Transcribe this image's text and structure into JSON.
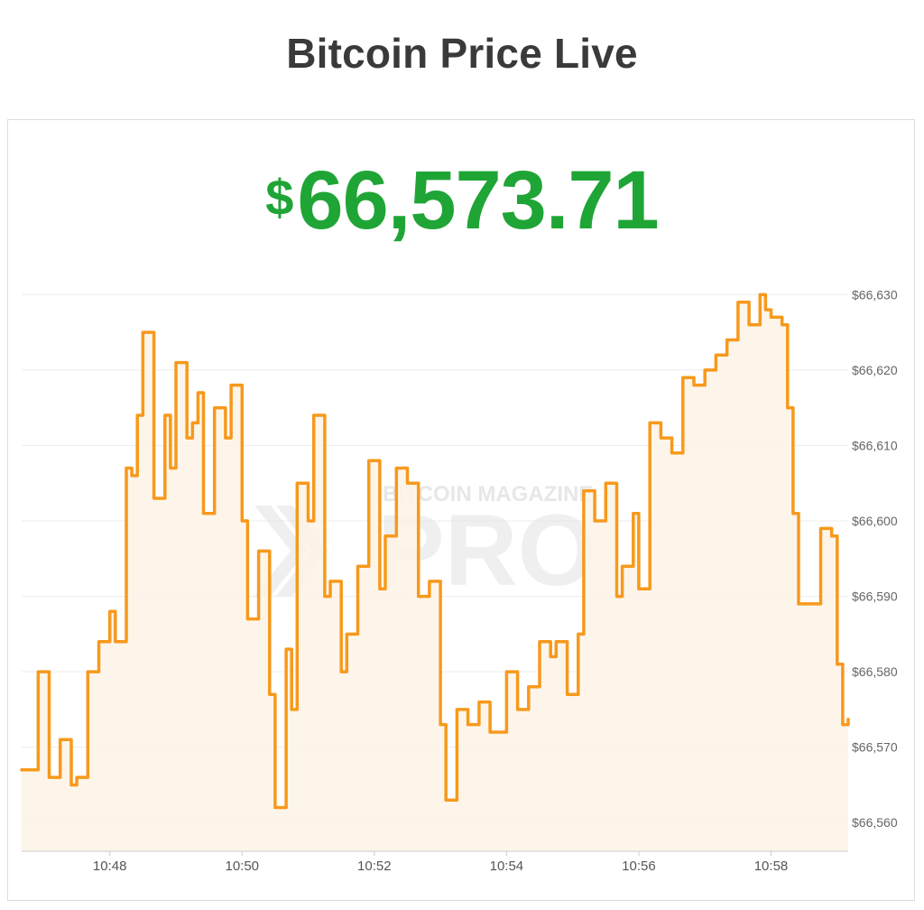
{
  "header": {
    "title": "Bitcoin Price Live"
  },
  "price": {
    "currency": "$",
    "value": "66,573.71"
  },
  "watermark": {
    "top": "BITCOIN MAGAZINE",
    "bottom": "PRO"
  },
  "colors": {
    "line": "#f7991c",
    "area": "#fdf3e6",
    "price": "#1fa535",
    "grid": "#ececec"
  },
  "chart_data": {
    "type": "area",
    "title": "",
    "xlabel": "",
    "ylabel": "",
    "x_ticks": [
      "10:48",
      "10:50",
      "10:52",
      "10:54",
      "10:56",
      "10:58"
    ],
    "y_ticks": [
      "$66,560",
      "$66,570",
      "$66,580",
      "$66,590",
      "$66,600",
      "$66,610",
      "$66,620",
      "$66,630"
    ],
    "ylim": [
      66556.2,
      66631
    ],
    "xlim": [
      "10:46:40",
      "10:59:10"
    ],
    "grid": true,
    "y_axis_position": "right",
    "series": [
      {
        "x": [
          "10:46:40",
          "10:46:55",
          "10:47:05",
          "10:47:15",
          "10:47:25",
          "10:47:30",
          "10:47:40",
          "10:47:50",
          "10:48:00",
          "10:48:05",
          "10:48:15",
          "10:48:20",
          "10:48:25",
          "10:48:30",
          "10:48:40",
          "10:48:50",
          "10:48:55",
          "10:49:00",
          "10:49:10",
          "10:49:15",
          "10:49:20",
          "10:49:25",
          "10:49:35",
          "10:49:45",
          "10:49:50",
          "10:50:00",
          "10:50:05",
          "10:50:15",
          "10:50:25",
          "10:50:30",
          "10:50:40",
          "10:50:45",
          "10:50:50",
          "10:51:00",
          "10:51:05",
          "10:51:15",
          "10:51:20",
          "10:51:30",
          "10:51:35",
          "10:51:45",
          "10:51:55",
          "10:52:05",
          "10:52:10",
          "10:52:20",
          "10:52:30",
          "10:52:40",
          "10:52:50",
          "10:53:00",
          "10:53:05",
          "10:53:15",
          "10:53:25",
          "10:53:35",
          "10:53:45",
          "10:54:00",
          "10:54:10",
          "10:54:20",
          "10:54:30",
          "10:54:40",
          "10:54:45",
          "10:54:55",
          "10:55:05",
          "10:55:10",
          "10:55:20",
          "10:55:30",
          "10:55:40",
          "10:55:45",
          "10:55:55",
          "10:56:00",
          "10:56:10",
          "10:56:20",
          "10:56:30",
          "10:56:40",
          "10:56:50",
          "10:57:00",
          "10:57:10",
          "10:57:20",
          "10:57:30",
          "10:57:40",
          "10:57:50",
          "10:57:55",
          "10:58:00",
          "10:58:10",
          "10:58:15",
          "10:58:20",
          "10:58:25",
          "10:58:35",
          "10:58:45",
          "10:58:55",
          "10:59:00",
          "10:59:05",
          "10:59:10"
        ],
        "values": [
          66567,
          66580,
          66566,
          66571,
          66565,
          66566,
          66580,
          66584,
          66588,
          66584,
          66607,
          66606,
          66614,
          66625,
          66603,
          66614,
          66607,
          66621,
          66611,
          66613,
          66617,
          66601,
          66615,
          66611,
          66618,
          66600,
          66587,
          66596,
          66577,
          66562,
          66583,
          66575,
          66605,
          66600,
          66614,
          66590,
          66592,
          66580,
          66585,
          66594,
          66608,
          66591,
          66598,
          66607,
          66605,
          66590,
          66592,
          66573,
          66563,
          66575,
          66573,
          66576,
          66572,
          66580,
          66575,
          66578,
          66584,
          66582,
          66584,
          66577,
          66585,
          66604,
          66600,
          66605,
          66590,
          66594,
          66601,
          66591,
          66613,
          66611,
          66609,
          66619,
          66618,
          66620,
          66622,
          66624,
          66629,
          66626,
          66630,
          66628,
          66627,
          66626,
          66615,
          66601,
          66589,
          66589,
          66599,
          66598,
          66581,
          66573,
          66573.7
        ]
      }
    ]
  }
}
